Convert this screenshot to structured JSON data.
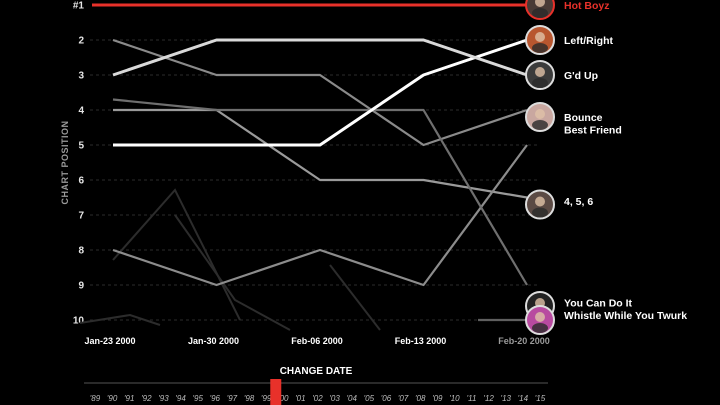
{
  "chart_data": {
    "type": "line",
    "ylabel": "CHART POSITION",
    "x": [
      "Jan-23 2000",
      "Jan-30 2000",
      "Feb-06 2000",
      "Feb-13 2000",
      "Feb-20 2000"
    ],
    "current_index": 4,
    "y_ticks": [
      "#1",
      "2",
      "3",
      "4",
      "5",
      "6",
      "7",
      "8",
      "9",
      "10"
    ],
    "ylim": [
      1,
      10
    ],
    "highlight_color": "#e8312a",
    "series": [
      {
        "name": "Hot Boyz",
        "values": [
          1,
          1,
          1,
          1,
          1
        ],
        "color": "#e8312a",
        "strong": true
      },
      {
        "name": "Left/Right",
        "values": [
          5,
          5,
          5,
          3,
          2
        ],
        "color": "#ffffff",
        "strong": true
      },
      {
        "name": "G'd Up",
        "values": [
          3,
          2,
          2,
          2,
          3
        ],
        "color": "#d9d9d9",
        "strong": true
      },
      {
        "name": "Bounce",
        "values": [
          4,
          4,
          6,
          6,
          6.5
        ],
        "color": "#9a9a9a",
        "strong": false
      },
      {
        "name": "Best Friend",
        "values": [
          8,
          9,
          8,
          9,
          5
        ],
        "color": "#8c8c8c",
        "strong": false
      },
      {
        "name": "4, 5, 6",
        "values": [
          2,
          3,
          3,
          5,
          4
        ],
        "color": "#8a8a8a",
        "strong": false
      },
      {
        "name": "You Can Do It",
        "values": [
          3.7,
          4,
          4,
          4,
          9
        ],
        "color": "#6f6f6f",
        "strong": false
      },
      {
        "name": "Whistle While You Twurk",
        "values": [
          null,
          null,
          null,
          null,
          10
        ],
        "color": "#5f5f5f",
        "strong": false
      }
    ],
    "labels": [
      {
        "song": "Hot Boyz",
        "pos": 1,
        "text": "Hot Boyz",
        "highlight": true,
        "avatar": "#4a3b36"
      },
      {
        "song": "Left/Right",
        "pos": 2,
        "text": "Left/Right",
        "highlight": false,
        "avatar": "#b8562f"
      },
      {
        "song": "G'd Up",
        "pos": 3,
        "text": "G'd Up",
        "highlight": false,
        "avatar": "#3b3b3b"
      },
      {
        "song": "Bounce",
        "pos": 4.5,
        "text": "Bounce",
        "highlight": false,
        "avatar": "#c9a7a0"
      },
      {
        "song": "Best Friend",
        "pos": 4.5,
        "text": "Best Friend",
        "highlight": false,
        "avatar": null
      },
      {
        "song": "4, 5, 6",
        "pos": 6.5,
        "text": "4, 5, 6",
        "highlight": false,
        "avatar": "#5b4a44"
      },
      {
        "song": "You Can Do It",
        "pos": 9.5,
        "text": "You Can Do It",
        "highlight": false,
        "avatar": "#222222"
      },
      {
        "song": "Whistle While You Twurk",
        "pos": 10,
        "text": "Whistle While You Twurk",
        "highlight": false,
        "avatar": "#b84aa0"
      }
    ]
  },
  "timeline": {
    "title": "CHANGE DATE",
    "years": [
      "'89",
      "'90",
      "'91",
      "'92",
      "'93",
      "'94",
      "'95",
      "'96",
      "'97",
      "'98",
      "'99",
      "'00",
      "'01",
      "'02",
      "'03",
      "'04",
      "'05",
      "'06",
      "'07",
      "'08",
      "'09",
      "'10",
      "'11",
      "'12",
      "'13",
      "'14",
      "'15"
    ],
    "selected_index": 11
  }
}
